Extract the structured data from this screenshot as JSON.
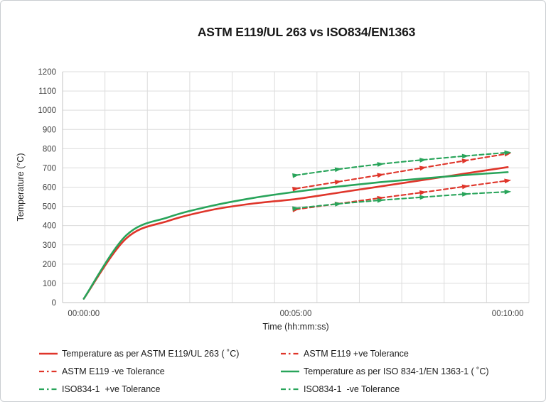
{
  "page": {
    "background": "#ffffff",
    "frame_border_color": "#c9cdd1"
  },
  "chart_data": {
    "type": "line",
    "title": "ASTM E119/UL 263 vs ISO834/EN1363",
    "xlabel": "Time (hh:mm:ss)",
    "ylabel": "Temperature (°C)",
    "x_unit": "minutes",
    "x_categories": 11,
    "ylim": [
      0,
      1200
    ],
    "ytick_step": 100,
    "x_ticks": [
      {
        "minute": 0,
        "label": "00:00:00"
      },
      {
        "minute": 5,
        "label": "00:05:00"
      },
      {
        "minute": 10,
        "label": "00:10:00"
      }
    ],
    "grid": true,
    "grid_color": "#dcdcdc",
    "axis_color": "#c3c3c3",
    "tick_label_color": "#404040",
    "axis_title_color": "#262626",
    "legend_position": "bottom",
    "series": [
      {
        "name": "Temperature as per ASTM E119/UL 263 ( ˚C)",
        "color": "#df352a",
        "style": "solid",
        "x_minutes": [
          0,
          1,
          2,
          3,
          4,
          5,
          6,
          7,
          8,
          9,
          10
        ],
        "values": [
          20,
          333,
          425,
          481,
          515,
          538,
          571,
          604,
          637,
          671,
          704
        ]
      },
      {
        "name": "ASTM E119 +ve Tolerance",
        "color": "#df352a",
        "style": "dashed",
        "x_minutes": [
          5,
          6,
          7,
          8,
          9,
          10
        ],
        "values": [
          592,
          628,
          664,
          701,
          738,
          774
        ]
      },
      {
        "name": "ASTM E119 -ve Tolerance",
        "color": "#df352a",
        "style": "dashed",
        "x_minutes": [
          5,
          6,
          7,
          8,
          9,
          10
        ],
        "values": [
          484,
          514,
          544,
          573,
          604,
          634
        ]
      },
      {
        "name": "Temperature as per ISO 834-1/EN 1363-1 ( ˚C)",
        "color": "#28a45a",
        "style": "solid",
        "x_minutes": [
          0,
          1,
          2,
          3,
          4,
          5,
          6,
          7,
          8,
          9,
          10
        ],
        "values": [
          20,
          349,
          444,
          502,
          544,
          576,
          603,
          626,
          645,
          663,
          678
        ]
      },
      {
        "name": "ISO834-1  +ve Tolerance",
        "color": "#28a45a",
        "style": "dashed",
        "x_minutes": [
          5,
          6,
          7,
          8,
          9,
          10
        ],
        "values": [
          662,
          693,
          720,
          742,
          762,
          780
        ]
      },
      {
        "name": "ISO834-1  -ve Tolerance",
        "color": "#28a45a",
        "style": "dashed",
        "x_minutes": [
          5,
          6,
          7,
          8,
          9,
          10
        ],
        "values": [
          490,
          513,
          532,
          548,
          564,
          576
        ]
      }
    ]
  }
}
